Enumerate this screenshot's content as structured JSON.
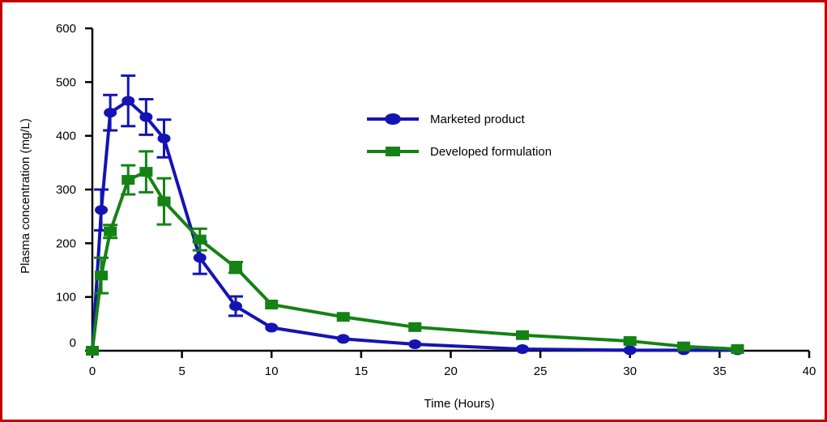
{
  "chart_data": {
    "type": "line",
    "title": "",
    "xlabel": "Time (Hours)",
    "ylabel": "Plasma concentration (mg/L)",
    "xlim": [
      0,
      40
    ],
    "ylim": [
      0,
      600
    ],
    "x_ticks": [
      "0",
      "5",
      "10",
      "15",
      "20",
      "25",
      "30",
      "35",
      "40"
    ],
    "y_ticks": [
      "0",
      "100",
      "200",
      "300",
      "400",
      "500",
      "600"
    ],
    "grid": false,
    "legend_position": "upper-right",
    "border_color": "#c00000",
    "series": [
      {
        "name": "Marketed product",
        "color": "#1414b4",
        "marker": "circle",
        "points": [
          {
            "x": 0,
            "y": 0,
            "err": 0
          },
          {
            "x": 0.5,
            "y": 262,
            "err": 38
          },
          {
            "x": 1,
            "y": 443,
            "err": 33
          },
          {
            "x": 2,
            "y": 465,
            "err": 47
          },
          {
            "x": 3,
            "y": 435,
            "err": 33
          },
          {
            "x": 4,
            "y": 395,
            "err": 35
          },
          {
            "x": 6,
            "y": 173,
            "err": 30
          },
          {
            "x": 8,
            "y": 83,
            "err": 18
          },
          {
            "x": 10,
            "y": 43,
            "err": 0
          },
          {
            "x": 14,
            "y": 22,
            "err": 0
          },
          {
            "x": 18,
            "y": 12,
            "err": 0
          },
          {
            "x": 24,
            "y": 3,
            "err": 0
          },
          {
            "x": 30,
            "y": 1,
            "err": 0
          },
          {
            "x": 33,
            "y": 1,
            "err": 0
          },
          {
            "x": 36,
            "y": 1,
            "err": 0
          }
        ]
      },
      {
        "name": "Developed formulation",
        "color": "#148214",
        "marker": "square",
        "points": [
          {
            "x": 0,
            "y": 0,
            "err": 0
          },
          {
            "x": 0.5,
            "y": 140,
            "err": 33
          },
          {
            "x": 1,
            "y": 222,
            "err": 12
          },
          {
            "x": 2,
            "y": 318,
            "err": 27
          },
          {
            "x": 3,
            "y": 333,
            "err": 38
          },
          {
            "x": 4,
            "y": 278,
            "err": 43
          },
          {
            "x": 6,
            "y": 207,
            "err": 20
          },
          {
            "x": 8,
            "y": 155,
            "err": 10
          },
          {
            "x": 10,
            "y": 86,
            "err": 0
          },
          {
            "x": 14,
            "y": 63,
            "err": 0
          },
          {
            "x": 18,
            "y": 44,
            "err": 0
          },
          {
            "x": 24,
            "y": 29,
            "err": 0
          },
          {
            "x": 30,
            "y": 18,
            "err": 0
          },
          {
            "x": 33,
            "y": 8,
            "err": 0
          },
          {
            "x": 36,
            "y": 3,
            "err": 0
          }
        ]
      }
    ]
  }
}
